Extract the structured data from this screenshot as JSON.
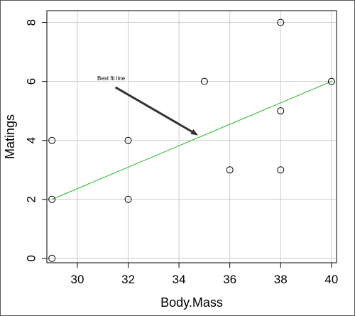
{
  "chart_data": {
    "type": "scatter",
    "xlabel": "Body.Mass",
    "ylabel": "Matings",
    "xlim": [
      28.8,
      40.2
    ],
    "ylim": [
      -0.15,
      8.4
    ],
    "xticks": [
      30,
      32,
      34,
      36,
      38,
      40
    ],
    "yticks": [
      0,
      2,
      4,
      6,
      8
    ],
    "grid": true,
    "points": [
      {
        "x": 29,
        "y": 0
      },
      {
        "x": 29,
        "y": 2
      },
      {
        "x": 29,
        "y": 4
      },
      {
        "x": 32,
        "y": 2
      },
      {
        "x": 32,
        "y": 4
      },
      {
        "x": 35,
        "y": 6
      },
      {
        "x": 36,
        "y": 3
      },
      {
        "x": 38,
        "y": 3
      },
      {
        "x": 38,
        "y": 5
      },
      {
        "x": 38,
        "y": 8
      },
      {
        "x": 40,
        "y": 6
      }
    ],
    "fit_line": {
      "x1": 29,
      "y1": 2,
      "x2": 40,
      "y2": 6,
      "color": "#22bb22"
    },
    "annotation": {
      "text": "Best fit line",
      "arrow_from": {
        "x": 31.5,
        "y": 5.8
      },
      "arrow_to": {
        "x": 34.7,
        "y": 4.2
      },
      "arrow_color": "#333333"
    }
  }
}
